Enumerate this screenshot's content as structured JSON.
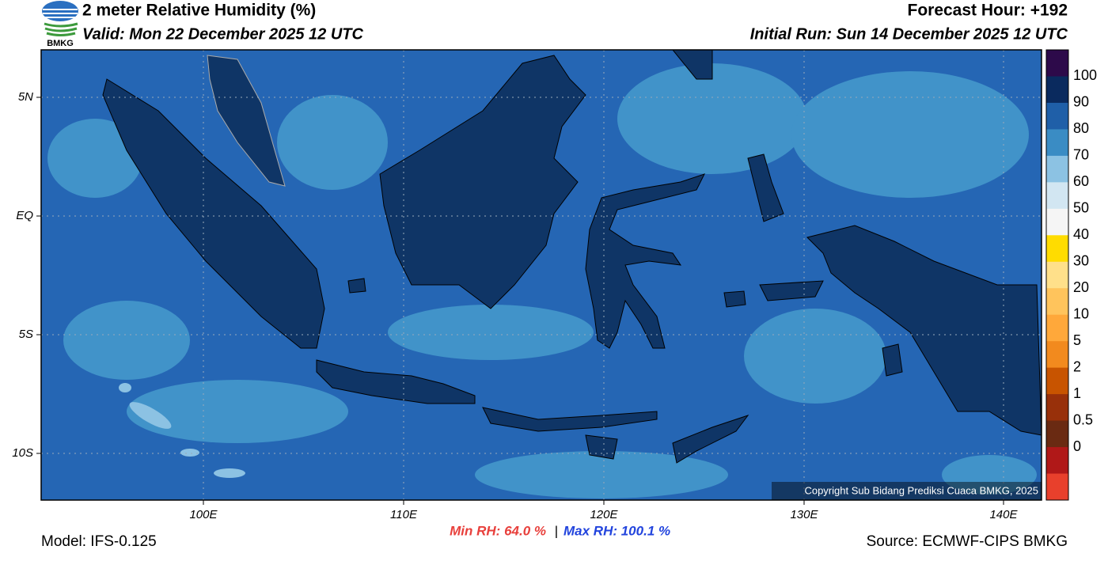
{
  "header": {
    "title": "2 meter Relative Humidity (%)",
    "valid": "Valid: Mon 22 December 2025 12 UTC",
    "forecast_hour": "Forecast Hour: +192",
    "initial_run": "Initial Run: Sun 14 December 2025 12 UTC",
    "logo_text": "BMKG"
  },
  "map": {
    "lat_labels": [
      "5N",
      "EQ",
      "5S",
      "10S"
    ],
    "lon_labels": [
      "100E",
      "110E",
      "120E",
      "130E",
      "140E"
    ],
    "copyright": "Copyright Sub Bidang Prediksi Cuaca BMKG, 2025"
  },
  "colorbar": {
    "labels": [
      "100",
      "90",
      "80",
      "70",
      "60",
      "50",
      "40",
      "30",
      "20",
      "10",
      "5",
      "2",
      "1",
      "0.5",
      "0"
    ]
  },
  "footer": {
    "min_rh": "Min RH:  64.0 %",
    "separator": "|",
    "max_rh": "Max RH: 100.1 %",
    "model": "Model: IFS-0.125",
    "source": "Source: ECMWF-CIPS BMKG"
  }
}
